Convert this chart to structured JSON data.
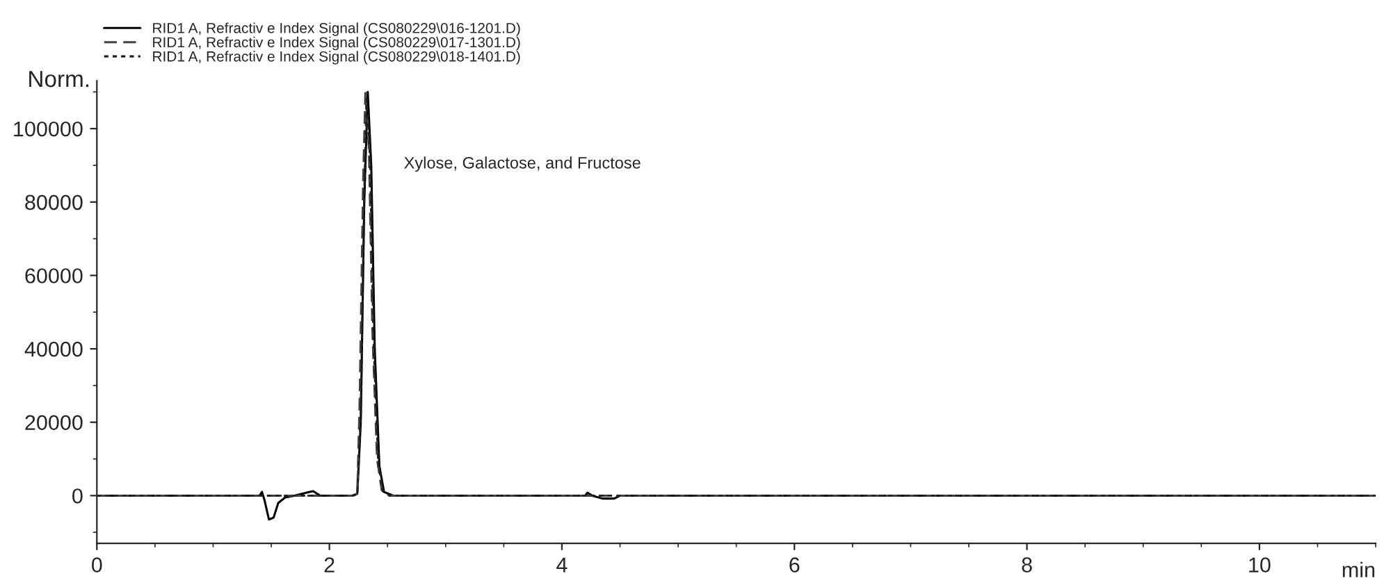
{
  "chart_data": {
    "type": "line",
    "xlabel": "min",
    "ylabel": "Norm.",
    "xlim": [
      0,
      11
    ],
    "ylim": [
      -13000,
      113000
    ],
    "xticks": [
      0,
      2,
      4,
      6,
      8,
      10
    ],
    "yticks": [
      0,
      20000,
      40000,
      60000,
      80000,
      100000
    ],
    "grid": false,
    "legend": "top left",
    "marker": "none",
    "annotations": [
      "Xylose, Galactose, and Fructose"
    ],
    "series": [
      {
        "name": "RID1 A, Refractiv e Index Signal (CS080229\\016-1201.D)",
        "color": "#000000",
        "line_style": "solid",
        "x": [
          0,
          1.4,
          1.42,
          1.44,
          1.48,
          1.52,
          1.56,
          1.62,
          1.7,
          1.8,
          1.86,
          1.92,
          2.2,
          2.24,
          2.27,
          2.3,
          2.33,
          2.36,
          2.39,
          2.43,
          2.47,
          2.55,
          4.2,
          4.22,
          4.26,
          4.35,
          4.45,
          4.5,
          11
        ],
        "values": [
          0,
          0,
          1000,
          -1000,
          -6500,
          -6000,
          -2000,
          -500,
          0,
          800,
          1200,
          0,
          0,
          500,
          20000,
          80000,
          110000,
          90000,
          40000,
          8000,
          1000,
          0,
          0,
          800,
          0,
          -800,
          -800,
          0,
          0
        ]
      },
      {
        "name": "RID1 A, Refractiv e Index Signal (CS080229\\017-1301.D)",
        "color": "#404040",
        "line_style": "dashed",
        "x": [
          0,
          2.2,
          2.24,
          2.26,
          2.29,
          2.31,
          2.34,
          2.37,
          2.41,
          2.45,
          2.5,
          2.6,
          11
        ],
        "values": [
          0,
          0,
          500,
          25000,
          85000,
          110000,
          95000,
          45000,
          10000,
          1500,
          0,
          0,
          0
        ]
      },
      {
        "name": "RID1 A, Refractiv e Index Signal (CS080229\\018-1401.D)",
        "color": "#202020",
        "line_style": "dotted",
        "x": [
          0,
          2.2,
          2.24,
          2.27,
          2.3,
          2.32,
          2.35,
          2.38,
          2.42,
          2.46,
          2.52,
          2.62,
          11
        ],
        "values": [
          0,
          0,
          500,
          22000,
          82000,
          108000,
          92000,
          42000,
          9000,
          1200,
          0,
          0,
          0
        ]
      }
    ]
  }
}
